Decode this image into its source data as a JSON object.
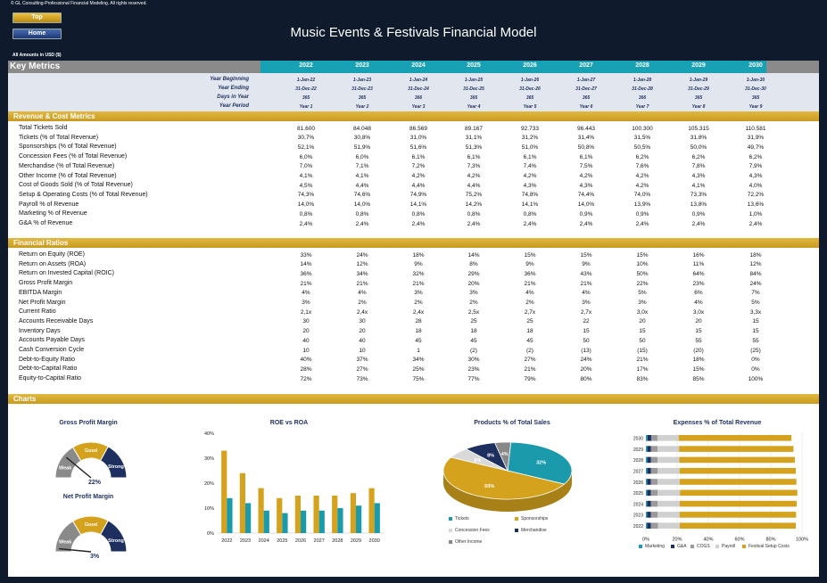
{
  "header": {
    "copyright": "© GL Consulting-Professional Financial Modeling. All rights reserved.",
    "btn_top": "Top",
    "btn_home": "Home",
    "title": "Music Events & Festivals Financial Model",
    "amounts": "All Amounts in  USD ($)"
  },
  "key_metrics": {
    "label": "Key Metrics",
    "years": [
      "2022",
      "2023",
      "2024",
      "2025",
      "2026",
      "2027",
      "2028",
      "2029",
      "2030"
    ],
    "rows": [
      {
        "label": "Year Beginning",
        "values": [
          "1-Jan-22",
          "1-Jan-23",
          "1-Jan-24",
          "1-Jan-25",
          "1-Jan-26",
          "1-Jan-27",
          "1-Jan-28",
          "1-Jan-29",
          "1-Jan-30"
        ]
      },
      {
        "label": "Year Ending",
        "values": [
          "31-Dec-22",
          "31-Dec-23",
          "31-Dec-24",
          "31-Dec-25",
          "31-Dec-26",
          "31-Dec-27",
          "31-Dec-28",
          "31-Dec-29",
          "31-Dec-30"
        ]
      },
      {
        "label": "Days in Year",
        "values": [
          "365",
          "365",
          "366",
          "365",
          "365",
          "365",
          "366",
          "365",
          "365"
        ]
      },
      {
        "label": "Year Period",
        "values": [
          "Year 1",
          "Year 2",
          "Year 3",
          "Year 4",
          "Year 5",
          "Year 6",
          "Year 7",
          "Year 8",
          "Year 9"
        ]
      }
    ]
  },
  "revenue": {
    "title": "Revenue & Cost Metrics",
    "rows": [
      {
        "label": "Total Tickets Sold",
        "values": [
          "81.600",
          "84.048",
          "86.569",
          "89.167",
          "92.733",
          "96.443",
          "100.300",
          "105.315",
          "110.581"
        ]
      },
      {
        "label": "Tickets (% of Total Revenue)",
        "values": [
          "30,7%",
          "30,8%",
          "31,0%",
          "31,1%",
          "31,2%",
          "31,4%",
          "31,5%",
          "31,8%",
          "31,9%"
        ]
      },
      {
        "label": "Sponsorships (% of Total Revenue)",
        "values": [
          "52,1%",
          "51,9%",
          "51,6%",
          "51,3%",
          "51,0%",
          "50,8%",
          "50,5%",
          "50,0%",
          "49,7%"
        ]
      },
      {
        "label": "Concession Fees (% of Total Revenue)",
        "values": [
          "6,0%",
          "6,0%",
          "6,1%",
          "6,1%",
          "6,1%",
          "6,1%",
          "6,2%",
          "6,2%",
          "6,2%"
        ]
      },
      {
        "label": "Merchandise (% of Total Revenue)",
        "values": [
          "7,0%",
          "7,1%",
          "7,2%",
          "7,3%",
          "7,4%",
          "7,5%",
          "7,6%",
          "7,8%",
          "7,9%"
        ]
      },
      {
        "label": "Other Income (% of Total Revenue)",
        "values": [
          "4,1%",
          "4,1%",
          "4,2%",
          "4,2%",
          "4,2%",
          "4,2%",
          "4,2%",
          "4,3%",
          "4,3%"
        ]
      },
      {
        "label": "Cost of Goods Sold (% of Total Revenue)",
        "values": [
          "4,5%",
          "4,4%",
          "4,4%",
          "4,4%",
          "4,3%",
          "4,3%",
          "4,2%",
          "4,1%",
          "4,0%"
        ]
      },
      {
        "label": "Setup & Operating Costs (% of Total Revenue)",
        "values": [
          "74,3%",
          "74,6%",
          "74,9%",
          "75,2%",
          "74,8%",
          "74,4%",
          "74,0%",
          "73,3%",
          "72,2%"
        ]
      },
      {
        "label": "Payroll % of Revenue",
        "values": [
          "14,0%",
          "14,0%",
          "14,1%",
          "14,2%",
          "14,1%",
          "14,0%",
          "13,9%",
          "13,8%",
          "13,6%"
        ]
      },
      {
        "label": "Marketing % of Revenue",
        "values": [
          "0,8%",
          "0,8%",
          "0,8%",
          "0,8%",
          "0,8%",
          "0,9%",
          "0,9%",
          "0,9%",
          "1,0%"
        ]
      },
      {
        "label": "G&A % of Revenue",
        "values": [
          "2,4%",
          "2,4%",
          "2,4%",
          "2,4%",
          "2,4%",
          "2,4%",
          "2,4%",
          "2,4%",
          "2,4%"
        ]
      }
    ]
  },
  "ratios": {
    "title": "Financial Ratios",
    "rows": [
      {
        "label": "Return on Equity (ROE)",
        "values": [
          "33%",
          "24%",
          "18%",
          "14%",
          "15%",
          "15%",
          "15%",
          "16%",
          "18%"
        ]
      },
      {
        "label": "Return on Assets (ROA)",
        "values": [
          "14%",
          "12%",
          "9%",
          "8%",
          "9%",
          "9%",
          "10%",
          "11%",
          "12%"
        ]
      },
      {
        "label": "Return on Invested Capital (ROIC)",
        "values": [
          "36%",
          "34%",
          "32%",
          "29%",
          "36%",
          "43%",
          "50%",
          "64%",
          "84%"
        ]
      },
      {
        "label": "Gross Profit Margin",
        "values": [
          "21%",
          "21%",
          "21%",
          "20%",
          "21%",
          "21%",
          "22%",
          "23%",
          "24%"
        ]
      },
      {
        "label": "EBITDA Margin",
        "values": [
          "4%",
          "4%",
          "3%",
          "3%",
          "4%",
          "4%",
          "5%",
          "6%",
          "7%"
        ]
      },
      {
        "label": "Net Profit Margin",
        "values": [
          "3%",
          "2%",
          "2%",
          "2%",
          "2%",
          "3%",
          "3%",
          "4%",
          "5%"
        ]
      },
      {
        "label": "Current Ratio",
        "values": [
          "2,1x",
          "2,4x",
          "2,4x",
          "2,5x",
          "2,7x",
          "2,7x",
          "3,0x",
          "3,0x",
          "3,3x"
        ]
      },
      {
        "label": "Accounts Receivable Days",
        "values": [
          "30",
          "30",
          "28",
          "25",
          "25",
          "22",
          "20",
          "20",
          "15"
        ]
      },
      {
        "label": "Inventory Days",
        "values": [
          "20",
          "20",
          "18",
          "18",
          "18",
          "15",
          "15",
          "15",
          "15"
        ]
      },
      {
        "label": "Accounts Payable Days",
        "values": [
          "40",
          "40",
          "45",
          "45",
          "45",
          "50",
          "50",
          "55",
          "55"
        ]
      },
      {
        "label": "Cash Conversion Cycle",
        "values": [
          "10",
          "10",
          "1",
          "(2)",
          "(2)",
          "(13)",
          "(15)",
          "(20)",
          "(25)"
        ]
      },
      {
        "label": "Debt-to-Equity Ratio",
        "values": [
          "40%",
          "37%",
          "34%",
          "30%",
          "27%",
          "24%",
          "21%",
          "18%",
          "0%"
        ]
      },
      {
        "label": "Debt-to-Capital Ratio",
        "values": [
          "28%",
          "27%",
          "25%",
          "23%",
          "21%",
          "20%",
          "17%",
          "15%",
          "0%"
        ]
      },
      {
        "label": "Equity-to-Capital Ratio",
        "values": [
          "72%",
          "73%",
          "75%",
          "77%",
          "79%",
          "80%",
          "83%",
          "85%",
          "100%"
        ]
      }
    ]
  },
  "charts": {
    "title": "Charts",
    "gauges": [
      {
        "title": "Gross Profit Margin",
        "value_label": "22%",
        "value": 0.22
      },
      {
        "title": "Net Profit Margin",
        "value_label": "3%",
        "value": 0.03
      }
    ],
    "gauge_labels": [
      "Weak",
      "Good",
      "Strong"
    ],
    "colors": {
      "teal": "#1a9aab",
      "navy": "#1c2f5e",
      "gold": "#d4a21c",
      "gray": "#8a8a8a"
    }
  },
  "chart_data": [
    {
      "type": "bar",
      "title": "ROE vs ROA",
      "categories": [
        "2022",
        "2023",
        "2024",
        "2025",
        "2026",
        "2027",
        "2028",
        "2029",
        "2030"
      ],
      "series": [
        {
          "values": [
            33,
            24,
            18,
            14,
            15,
            15,
            15,
            16,
            18
          ]
        },
        {
          "values": [
            14,
            12,
            9,
            8,
            9,
            9,
            10,
            11,
            12
          ]
        }
      ],
      "ylim": [
        0,
        40
      ],
      "yticks": [
        "0%",
        "10%",
        "20%",
        "30%",
        "40%"
      ]
    },
    {
      "type": "pie",
      "title": "Products % of Total Sales",
      "slices": [
        {
          "name": "Tickets",
          "value": 32
        },
        {
          "name": "Sponsorships",
          "value": 50
        },
        {
          "name": "Concession Fees",
          "value": 6
        },
        {
          "name": "Merchandise",
          "value": 8
        },
        {
          "name": "Other Income",
          "value": 4
        }
      ],
      "labels": [
        "32%",
        "50%",
        "6%",
        "8%",
        "4%"
      ]
    },
    {
      "type": "bar",
      "title": "Expenses % of Total Revenue",
      "categories": [
        "2030",
        "2029",
        "2028",
        "2027",
        "2026",
        "2025",
        "2024",
        "2023",
        "2022"
      ],
      "series": [
        {
          "name": "Marketing",
          "values": [
            1.0,
            0.9,
            0.9,
            0.9,
            0.8,
            0.8,
            0.8,
            0.8,
            0.8
          ]
        },
        {
          "name": "G&A",
          "values": [
            2.4,
            2.4,
            2.4,
            2.4,
            2.4,
            2.4,
            2.4,
            2.4,
            2.4
          ]
        },
        {
          "name": "COGS",
          "values": [
            4.0,
            4.1,
            4.2,
            4.3,
            4.3,
            4.4,
            4.4,
            4.4,
            4.5
          ]
        },
        {
          "name": "Payroll",
          "values": [
            13.6,
            13.8,
            13.9,
            14.0,
            14.1,
            14.2,
            14.1,
            14.0,
            14.0
          ]
        },
        {
          "name": "Festival Setup Costs",
          "values": [
            72.2,
            73.3,
            74.0,
            74.4,
            74.8,
            75.2,
            74.9,
            74.6,
            74.3
          ]
        }
      ],
      "xticks": [
        "0%",
        "20%",
        "40%",
        "60%",
        "80%",
        "100%"
      ],
      "xlim": [
        0,
        100
      ]
    }
  ]
}
